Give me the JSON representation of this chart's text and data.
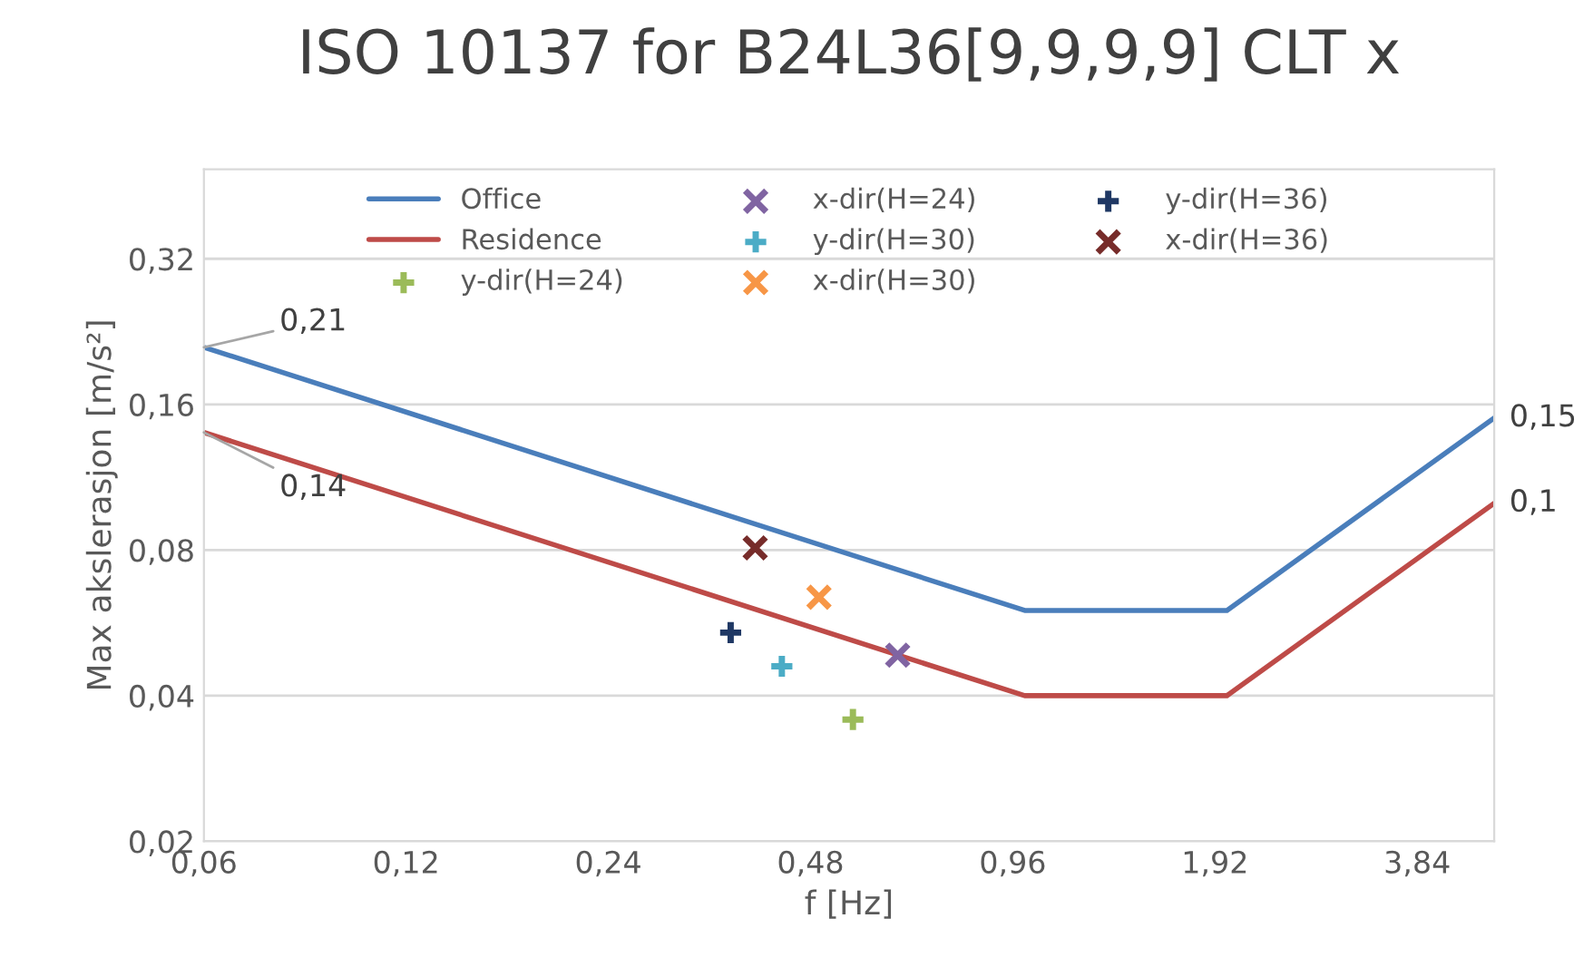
{
  "chart_data": {
    "type": "line",
    "title": "ISO 10137 for B24L36[9,9,9,9] CLT x",
    "xlabel": "f [Hz]",
    "ylabel": "Max akslerasjon [m/s²]",
    "log": "xy",
    "grid": "y",
    "legend": "top",
    "xlim": [
      0.06,
      5
    ],
    "ylim": [
      0.02,
      0.49
    ],
    "xticks": [
      {
        "value": 0.06,
        "label": "0,06"
      },
      {
        "value": 0.12,
        "label": "0,12"
      },
      {
        "value": 0.24,
        "label": "0,24"
      },
      {
        "value": 0.48,
        "label": "0,48"
      },
      {
        "value": 0.96,
        "label": "0,96"
      },
      {
        "value": 1.92,
        "label": "1,92"
      },
      {
        "value": 3.84,
        "label": "3,84"
      }
    ],
    "yticks": [
      {
        "value": 0.02,
        "label": "0,02"
      },
      {
        "value": 0.04,
        "label": "0,04"
      },
      {
        "value": 0.08,
        "label": "0,08"
      },
      {
        "value": 0.16,
        "label": "0,16"
      },
      {
        "value": 0.32,
        "label": "0,32"
      }
    ],
    "series": [
      {
        "name": "Office",
        "color": "#4a7ebb",
        "x": [
          0.06,
          1,
          2,
          5
        ],
        "values": [
          0.21,
          0.06,
          0.06,
          0.15
        ],
        "value_labels": [
          "0,21",
          null,
          null,
          "0,15"
        ]
      },
      {
        "name": "Residence",
        "color": "#be4b48",
        "x": [
          0.06,
          1,
          2,
          5
        ],
        "values": [
          0.14,
          0.04,
          0.04,
          0.1
        ],
        "value_labels": [
          "0,14",
          null,
          null,
          "0,1"
        ]
      },
      {
        "name": "y-dir(H=24)",
        "type": "scatter",
        "marker": "plus",
        "color": "#9bbb59",
        "x": [
          0.555
        ],
        "values": [
          0.0357
        ]
      },
      {
        "name": "x-dir(H=24)",
        "type": "scatter",
        "marker": "cross",
        "color": "#8064a2",
        "x": [
          0.647
        ],
        "values": [
          0.0485
        ]
      },
      {
        "name": "y-dir(H=30)",
        "type": "scatter",
        "marker": "plus",
        "color": "#4bacc6",
        "x": [
          0.435
        ],
        "values": [
          0.046
        ]
      },
      {
        "name": "x-dir(H=30)",
        "type": "scatter",
        "marker": "cross",
        "color": "#f79646",
        "x": [
          0.494
        ],
        "values": [
          0.0639
        ]
      },
      {
        "name": "y-dir(H=36)",
        "type": "scatter",
        "marker": "plus",
        "color": "#1f3864",
        "x": [
          0.365
        ],
        "values": [
          0.054
        ]
      },
      {
        "name": "x-dir(H=36)",
        "type": "scatter",
        "marker": "cross",
        "color": "#772c2a",
        "x": [
          0.397
        ],
        "values": [
          0.0808
        ]
      }
    ]
  }
}
